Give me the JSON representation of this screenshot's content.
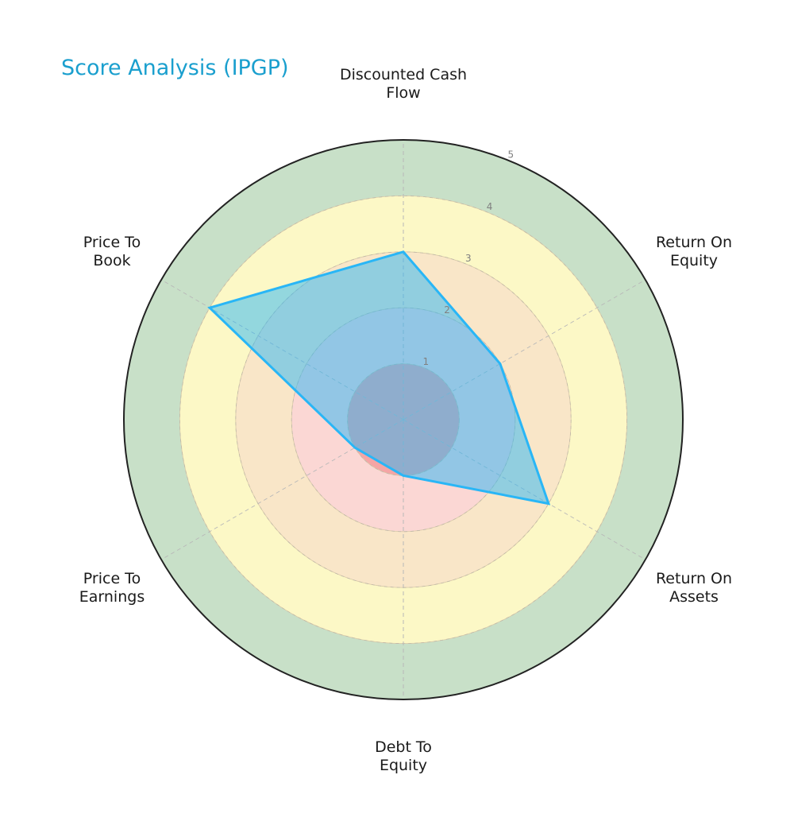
{
  "title": "Score Analysis (IPGP)",
  "chart_data": {
    "type": "radar",
    "title": "Score Analysis (IPGP)",
    "categories": [
      "Discounted Cash Flow",
      "Return On Equity",
      "Return On Assets",
      "Debt To Equity",
      "Price To Earnings",
      "Price To Book"
    ],
    "category_label_lines": [
      [
        "Discounted Cash",
        "Flow"
      ],
      [
        "Return On",
        "Equity"
      ],
      [
        "Return On",
        "Assets"
      ],
      [
        "Debt To",
        "Equity"
      ],
      [
        "Price To",
        "Earnings"
      ],
      [
        "Price To",
        "Book"
      ]
    ],
    "series": [
      {
        "name": "IPGP",
        "values": [
          3,
          2,
          3,
          1,
          1,
          4
        ],
        "color": "#29b6f6"
      }
    ],
    "rlim": [
      0,
      5
    ],
    "r_ticks": [
      "1",
      "2",
      "3",
      "4",
      "5"
    ],
    "background_bands": [
      {
        "from": 0,
        "to": 1,
        "color": "#f5a5a5"
      },
      {
        "from": 1,
        "to": 2,
        "color": "#fbd7d4"
      },
      {
        "from": 2,
        "to": 3,
        "color": "#f9e6c8"
      },
      {
        "from": 3,
        "to": 4,
        "color": "#fcf8c6"
      },
      {
        "from": 4,
        "to": 5,
        "color": "#c8e0c8"
      }
    ],
    "grid": true
  }
}
